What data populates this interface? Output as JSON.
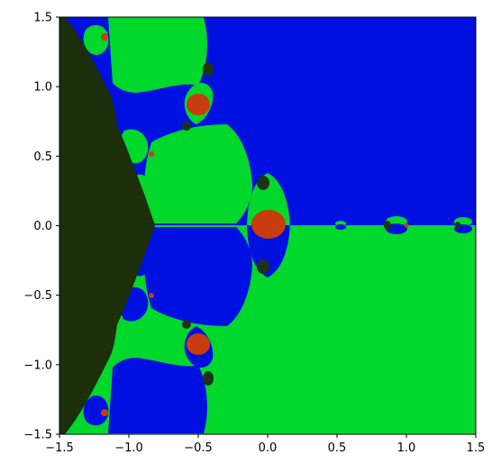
{
  "chart_data": {
    "type": "heatmap",
    "title": "",
    "xlabel": "",
    "ylabel": "",
    "xlim": [
      -1.5,
      1.5
    ],
    "ylim": [
      -1.5,
      1.5
    ],
    "xticks": [
      -1.5,
      -1.0,
      -0.5,
      0.0,
      0.5,
      1.0,
      1.5
    ],
    "yticks": [
      -1.5,
      -1.0,
      -0.5,
      0.0,
      0.5,
      1.0,
      1.5
    ],
    "xtick_labels": [
      "−1.5",
      "−1.0",
      "−0.5",
      "0.0",
      "0.5",
      "1.0",
      "1.5"
    ],
    "ytick_labels": [
      "−1.5",
      "−1.0",
      "−0.5",
      "0.0",
      "0.5",
      "1.0",
      "1.5"
    ],
    "grid": false,
    "colors": {
      "upper_basin": "#0010e0",
      "lower_basin": "#00d82c",
      "left_region": "#1c2e0a",
      "center_blobs": "#c83c10",
      "dark_nodes": "#1c3318"
    }
  }
}
